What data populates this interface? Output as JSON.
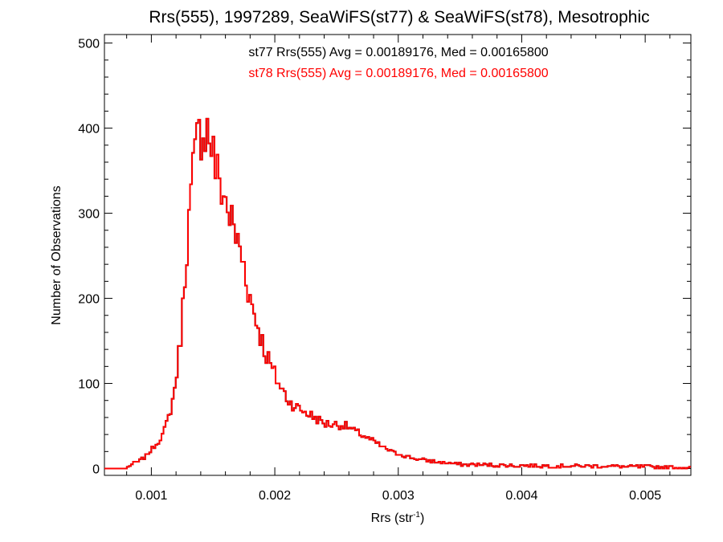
{
  "chart_data": {
    "type": "histogram",
    "title": "Rrs(555), 1997289, SeaWiFS(st77) & SeaWiFS(st78), Mesotrophic",
    "xlabel": "Rrs (str",
    "xlabel_sup": "-1",
    "xlabel_close": ")",
    "ylabel": "Number of Observations",
    "xlim": [
      0.00062,
      0.00537
    ],
    "ylim": [
      -8,
      510
    ],
    "xticks": [
      0.001,
      0.002,
      0.003,
      0.004,
      0.005
    ],
    "xtick_labels": [
      "0.001",
      "0.002",
      "0.003",
      "0.004",
      "0.005"
    ],
    "yticks": [
      0,
      100,
      200,
      300,
      400,
      500
    ],
    "ytick_labels": [
      "0",
      "100",
      "200",
      "300",
      "400",
      "500"
    ],
    "bin_width": 1.65e-05,
    "bin_points": [
      [
        0.00062,
        0
      ],
      [
        0.0008,
        0
      ],
      [
        0.00083,
        4
      ],
      [
        0.00089,
        8
      ],
      [
        0.00095,
        14
      ],
      [
        0.001,
        22
      ],
      [
        0.00105,
        30
      ],
      [
        0.0011,
        42
      ],
      [
        0.00114,
        60
      ],
      [
        0.00118,
        85
      ],
      [
        0.00122,
        130
      ],
      [
        0.00125,
        175
      ],
      [
        0.00128,
        250
      ],
      [
        0.00131,
        300
      ],
      [
        0.00134,
        350
      ],
      [
        0.00137,
        380
      ],
      [
        0.0014,
        400
      ],
      [
        0.00143,
        402
      ],
      [
        0.00146,
        397
      ],
      [
        0.00149,
        380
      ],
      [
        0.00153,
        345
      ],
      [
        0.00157,
        330
      ],
      [
        0.00161,
        310
      ],
      [
        0.00165,
        290
      ],
      [
        0.0017,
        265
      ],
      [
        0.00175,
        240
      ],
      [
        0.0018,
        200
      ],
      [
        0.00186,
        170
      ],
      [
        0.00192,
        138
      ],
      [
        0.00198,
        116
      ],
      [
        0.00205,
        95
      ],
      [
        0.00212,
        78
      ],
      [
        0.0022,
        70
      ],
      [
        0.0023,
        62
      ],
      [
        0.0024,
        53
      ],
      [
        0.0025,
        52
      ],
      [
        0.00258,
        50
      ],
      [
        0.00265,
        44
      ],
      [
        0.00272,
        38
      ],
      [
        0.0028,
        32
      ],
      [
        0.0029,
        23
      ],
      [
        0.003,
        17
      ],
      [
        0.00315,
        11
      ],
      [
        0.0033,
        8
      ],
      [
        0.0035,
        5
      ],
      [
        0.0038,
        4
      ],
      [
        0.0042,
        3
      ],
      [
        0.0046,
        3
      ],
      [
        0.005,
        2
      ],
      [
        0.00537,
        1
      ]
    ],
    "series": [
      {
        "name": "st77 Rrs(555) Avg = 0.00189176, Med = 0.00165800",
        "color": "#000000"
      },
      {
        "name": "st78 Rrs(555) Avg = 0.00189176, Med = 0.00165800",
        "color": "#ff0000"
      }
    ],
    "legend_position": "top-center",
    "grid": false
  }
}
